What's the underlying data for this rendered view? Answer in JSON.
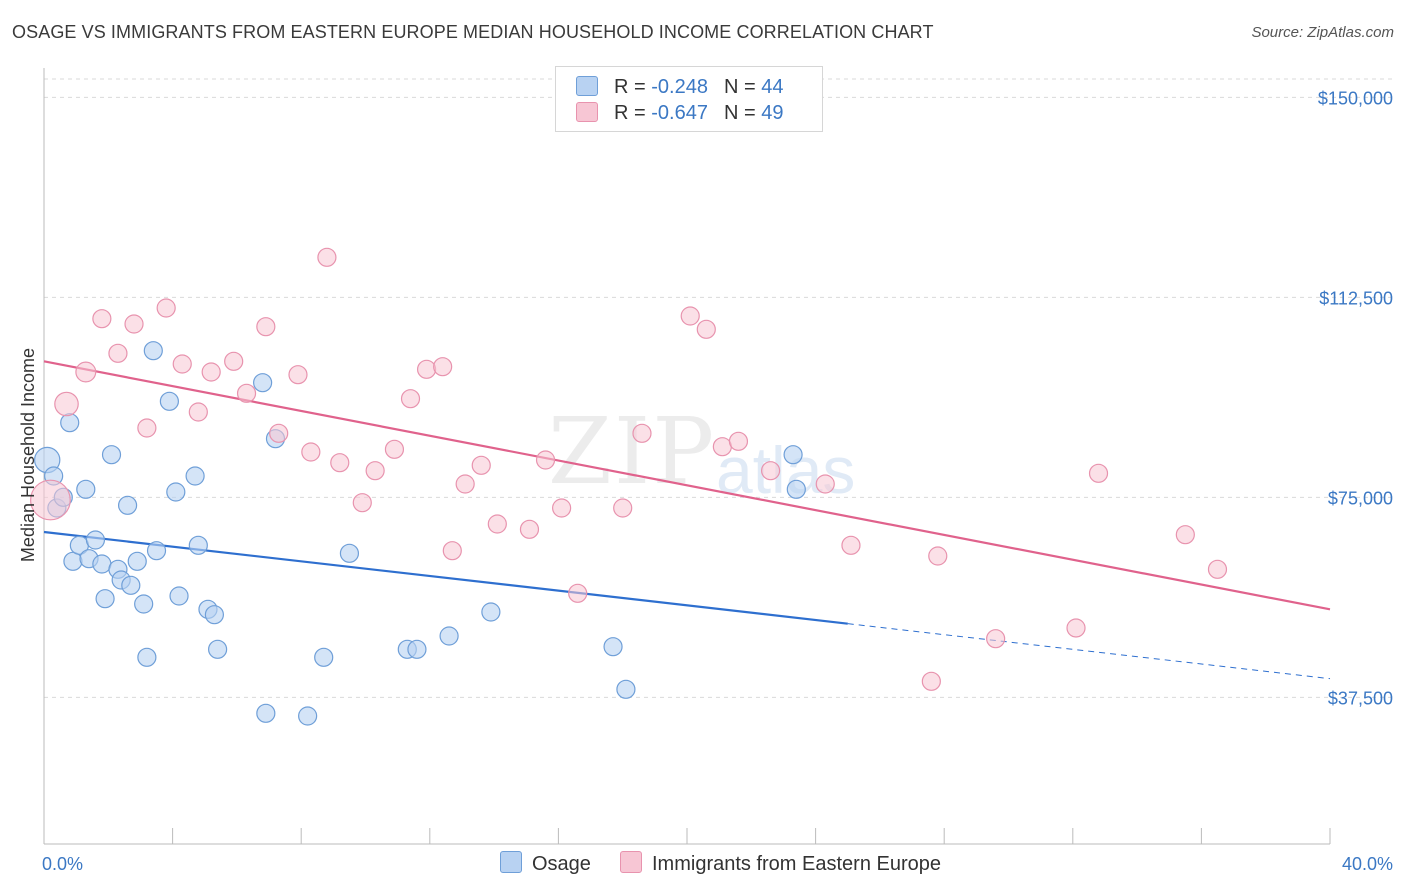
{
  "title": "OSAGE VS IMMIGRANTS FROM EASTERN EUROPE MEDIAN HOUSEHOLD INCOME CORRELATION CHART",
  "source": "Source: ZipAtlas.com",
  "watermark": {
    "zip": "ZIP",
    "atlas": "atlas"
  },
  "legend": {
    "osage": {
      "r_label": "R = ",
      "r_value": "-0.248",
      "n_label": "N = ",
      "n_value": "44"
    },
    "immigrants": {
      "r_label": "R = ",
      "r_value": "-0.647",
      "n_label": "N = ",
      "n_value": "49"
    }
  },
  "colors": {
    "osage_fill": "#b8d2f2",
    "osage_stroke": "#6f9fd8",
    "osage_line": "#2e6fcf",
    "imm_fill": "#f7c6d4",
    "imm_stroke": "#e893ae",
    "imm_line": "#e0628c",
    "axis_text": "#3b78c4",
    "grid": "#d9d9d9"
  },
  "chart_data": {
    "type": "scatter",
    "title": "OSAGE VS IMMIGRANTS FROM EASTERN EUROPE MEDIAN HOUSEHOLD INCOME CORRELATION CHART",
    "xlabel": "",
    "ylabel": "Median Household Income",
    "xlim": [
      0,
      40
    ],
    "ylim": [
      10000,
      157000
    ],
    "x_tick_labels": [
      "0.0%",
      "40.0%"
    ],
    "y_ticks": [
      37500,
      75000,
      112500,
      150000
    ],
    "y_tick_labels": [
      "$37,500",
      "$75,000",
      "$112,500",
      "$150,000"
    ],
    "grid": true,
    "legend_position": "bottom",
    "series": [
      {
        "name": "Osage",
        "r": -0.248,
        "n": 44,
        "trend": {
          "x_start": 0,
          "y_start": 68500,
          "x_solid_end": 25,
          "x_end": 40,
          "y_end": 41000
        },
        "points": [
          {
            "x": 0.1,
            "y": 82000,
            "s": 1.4
          },
          {
            "x": 0.3,
            "y": 79000,
            "s": 1
          },
          {
            "x": 0.4,
            "y": 73000,
            "s": 1
          },
          {
            "x": 0.6,
            "y": 75000,
            "s": 1
          },
          {
            "x": 0.8,
            "y": 89000,
            "s": 1
          },
          {
            "x": 0.9,
            "y": 63000,
            "s": 1
          },
          {
            "x": 1.1,
            "y": 66000,
            "s": 1
          },
          {
            "x": 1.3,
            "y": 76500,
            "s": 1
          },
          {
            "x": 1.4,
            "y": 63500,
            "s": 1
          },
          {
            "x": 1.6,
            "y": 67000,
            "s": 1
          },
          {
            "x": 1.8,
            "y": 62500,
            "s": 1
          },
          {
            "x": 1.9,
            "y": 56000,
            "s": 1
          },
          {
            "x": 2.1,
            "y": 83000,
            "s": 1
          },
          {
            "x": 2.3,
            "y": 61500,
            "s": 1
          },
          {
            "x": 2.4,
            "y": 59500,
            "s": 1
          },
          {
            "x": 2.6,
            "y": 73500,
            "s": 1
          },
          {
            "x": 2.7,
            "y": 58500,
            "s": 1
          },
          {
            "x": 2.9,
            "y": 63000,
            "s": 1
          },
          {
            "x": 3.1,
            "y": 55000,
            "s": 1
          },
          {
            "x": 3.2,
            "y": 45000,
            "s": 1
          },
          {
            "x": 3.4,
            "y": 102500,
            "s": 1
          },
          {
            "x": 3.5,
            "y": 65000,
            "s": 1
          },
          {
            "x": 3.9,
            "y": 93000,
            "s": 1
          },
          {
            "x": 4.1,
            "y": 76000,
            "s": 1
          },
          {
            "x": 4.2,
            "y": 56500,
            "s": 1
          },
          {
            "x": 4.7,
            "y": 79000,
            "s": 1
          },
          {
            "x": 4.8,
            "y": 66000,
            "s": 1
          },
          {
            "x": 5.1,
            "y": 54000,
            "s": 1
          },
          {
            "x": 5.3,
            "y": 53000,
            "s": 1
          },
          {
            "x": 5.4,
            "y": 46500,
            "s": 1
          },
          {
            "x": 6.8,
            "y": 96500,
            "s": 1
          },
          {
            "x": 6.9,
            "y": 34500,
            "s": 1
          },
          {
            "x": 7.2,
            "y": 86000,
            "s": 1
          },
          {
            "x": 8.2,
            "y": 34000,
            "s": 1
          },
          {
            "x": 8.7,
            "y": 45000,
            "s": 1
          },
          {
            "x": 9.5,
            "y": 64500,
            "s": 1
          },
          {
            "x": 11.3,
            "y": 46500,
            "s": 1
          },
          {
            "x": 11.6,
            "y": 46500,
            "s": 1
          },
          {
            "x": 12.6,
            "y": 49000,
            "s": 1
          },
          {
            "x": 13.9,
            "y": 53500,
            "s": 1
          },
          {
            "x": 17.7,
            "y": 47000,
            "s": 1
          },
          {
            "x": 18.1,
            "y": 39000,
            "s": 1
          },
          {
            "x": 23.3,
            "y": 83000,
            "s": 1
          },
          {
            "x": 23.4,
            "y": 76500,
            "s": 1
          }
        ]
      },
      {
        "name": "Immigrants from Eastern Europe",
        "r": -0.647,
        "n": 49,
        "trend": {
          "x_start": 0,
          "y_start": 100500,
          "x_end": 40,
          "y_end": 54000
        },
        "points": [
          {
            "x": 0.2,
            "y": 74500,
            "s": 2.2
          },
          {
            "x": 0.7,
            "y": 92500,
            "s": 1.3
          },
          {
            "x": 1.3,
            "y": 98500,
            "s": 1.1
          },
          {
            "x": 1.8,
            "y": 108500,
            "s": 1
          },
          {
            "x": 2.3,
            "y": 102000,
            "s": 1
          },
          {
            "x": 2.8,
            "y": 107500,
            "s": 1
          },
          {
            "x": 3.2,
            "y": 88000,
            "s": 1
          },
          {
            "x": 3.8,
            "y": 110500,
            "s": 1
          },
          {
            "x": 4.3,
            "y": 100000,
            "s": 1
          },
          {
            "x": 4.8,
            "y": 91000,
            "s": 1
          },
          {
            "x": 5.2,
            "y": 98500,
            "s": 1
          },
          {
            "x": 5.9,
            "y": 100500,
            "s": 1
          },
          {
            "x": 6.3,
            "y": 94500,
            "s": 1
          },
          {
            "x": 6.9,
            "y": 107000,
            "s": 1
          },
          {
            "x": 7.3,
            "y": 87000,
            "s": 1
          },
          {
            "x": 7.9,
            "y": 98000,
            "s": 1
          },
          {
            "x": 8.3,
            "y": 83500,
            "s": 1
          },
          {
            "x": 8.8,
            "y": 120000,
            "s": 1
          },
          {
            "x": 9.2,
            "y": 81500,
            "s": 1
          },
          {
            "x": 9.9,
            "y": 74000,
            "s": 1
          },
          {
            "x": 10.3,
            "y": 80000,
            "s": 1
          },
          {
            "x": 10.9,
            "y": 84000,
            "s": 1
          },
          {
            "x": 11.4,
            "y": 93500,
            "s": 1
          },
          {
            "x": 11.9,
            "y": 99000,
            "s": 1
          },
          {
            "x": 12.4,
            "y": 99500,
            "s": 1
          },
          {
            "x": 12.7,
            "y": 65000,
            "s": 1
          },
          {
            "x": 13.1,
            "y": 77500,
            "s": 1
          },
          {
            "x": 13.6,
            "y": 81000,
            "s": 1
          },
          {
            "x": 14.1,
            "y": 70000,
            "s": 1
          },
          {
            "x": 15.1,
            "y": 69000,
            "s": 1
          },
          {
            "x": 15.6,
            "y": 82000,
            "s": 1
          },
          {
            "x": 16.1,
            "y": 73000,
            "s": 1
          },
          {
            "x": 16.6,
            "y": 57000,
            "s": 1
          },
          {
            "x": 18.0,
            "y": 73000,
            "s": 1
          },
          {
            "x": 18.6,
            "y": 87000,
            "s": 1
          },
          {
            "x": 20.1,
            "y": 109000,
            "s": 1
          },
          {
            "x": 20.6,
            "y": 106500,
            "s": 1
          },
          {
            "x": 21.1,
            "y": 84500,
            "s": 1
          },
          {
            "x": 21.6,
            "y": 85500,
            "s": 1
          },
          {
            "x": 22.6,
            "y": 80000,
            "s": 1
          },
          {
            "x": 24.3,
            "y": 77500,
            "s": 1
          },
          {
            "x": 25.1,
            "y": 66000,
            "s": 1
          },
          {
            "x": 27.6,
            "y": 40500,
            "s": 1
          },
          {
            "x": 27.8,
            "y": 64000,
            "s": 1
          },
          {
            "x": 29.6,
            "y": 48500,
            "s": 1
          },
          {
            "x": 32.1,
            "y": 50500,
            "s": 1
          },
          {
            "x": 32.8,
            "y": 79500,
            "s": 1
          },
          {
            "x": 35.5,
            "y": 68000,
            "s": 1
          },
          {
            "x": 36.5,
            "y": 61500,
            "s": 1
          }
        ]
      }
    ]
  }
}
